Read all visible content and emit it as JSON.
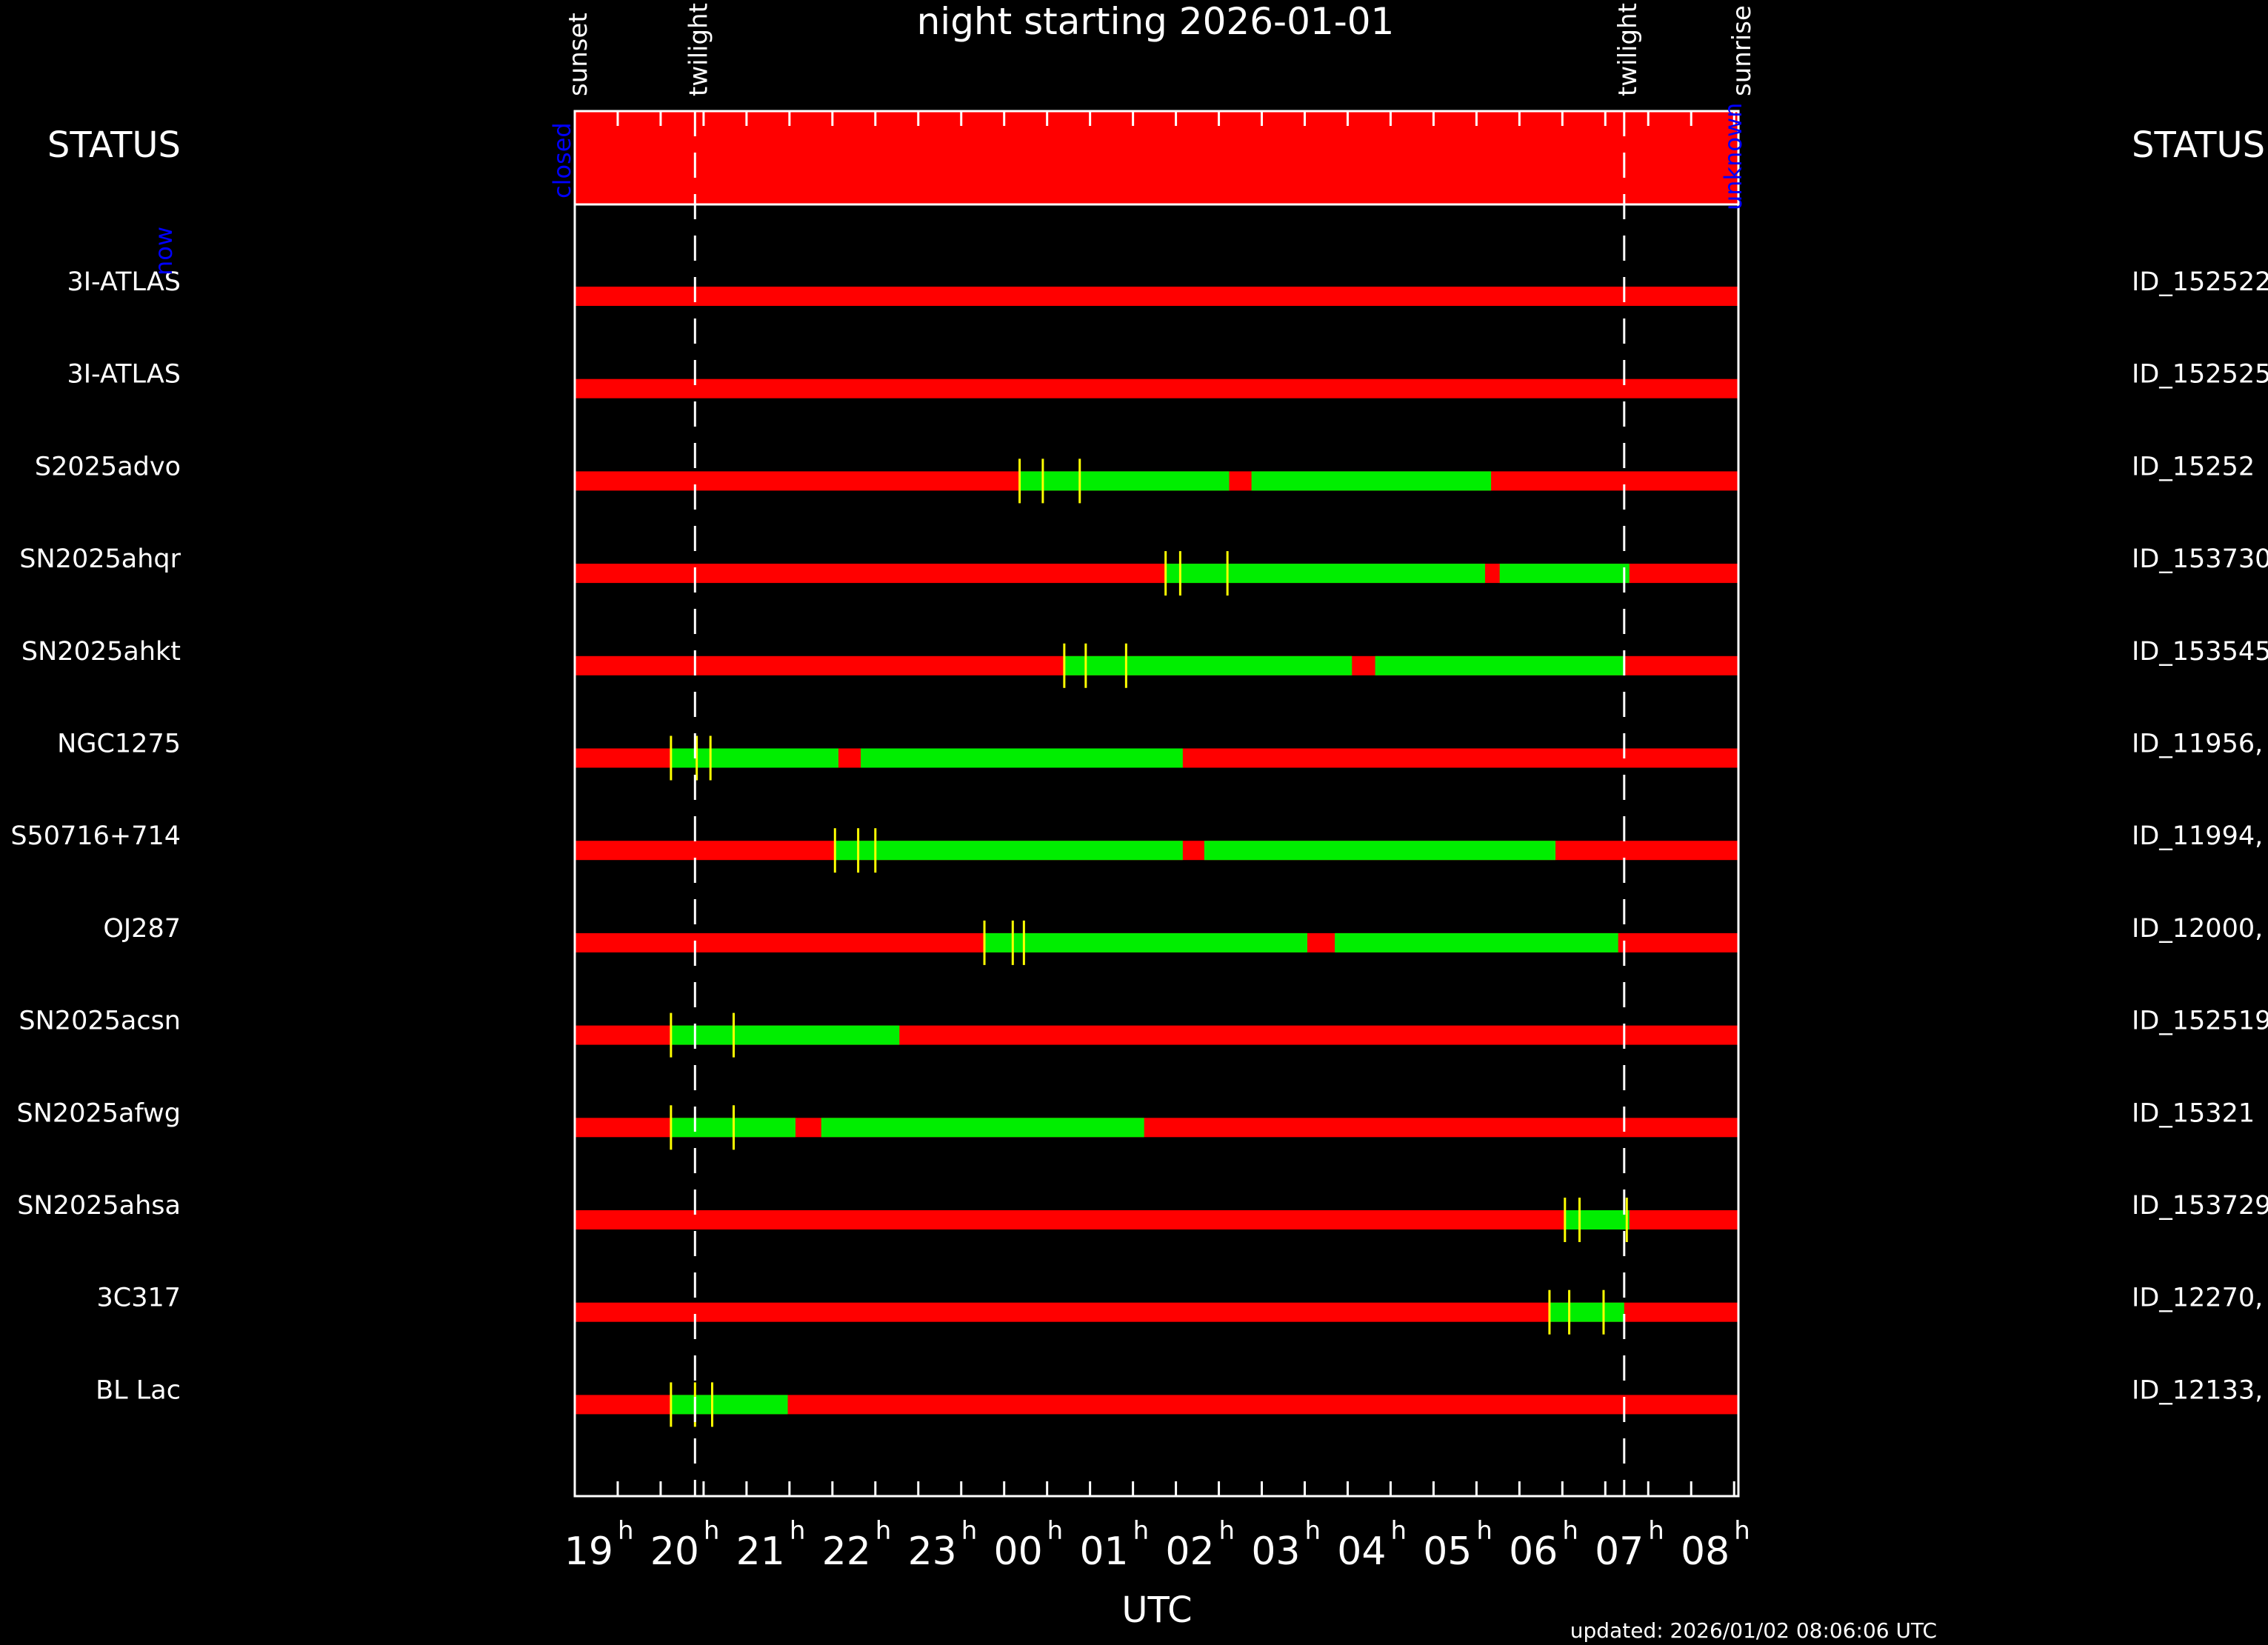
{
  "chart_data": {
    "type": "timeline",
    "title": "night starting 2026-01-01",
    "xlabel": "UTC",
    "x_ticks": [
      "19",
      "20",
      "21",
      "22",
      "23",
      "00",
      "01",
      "02",
      "03",
      "04",
      "05",
      "06",
      "07",
      "08"
    ],
    "x_tick_suffix": "h",
    "x_range_hours": [
      18.5,
      32.05
    ],
    "markers": [
      {
        "label": "sunset",
        "time": 18.5,
        "dashed": false
      },
      {
        "label": "twilight",
        "time": 19.9,
        "dashed": true
      },
      {
        "label": "twilight",
        "time": 30.72,
        "dashed": true
      },
      {
        "label": "sunrise",
        "time": 32.05,
        "dashed": false
      }
    ],
    "status": {
      "label": "STATUS",
      "right_label": "STATUS",
      "left_state": "closed",
      "right_state": "unknown",
      "now_label": "now",
      "bar_color": "#ff0000"
    },
    "colors": {
      "unobservable": "#ff0000",
      "observable": "#00ee00",
      "tick": "#ffff00",
      "text_blue": "#0000ff"
    },
    "targets": [
      {
        "name": "3I-ATLAS",
        "id": "ID_152522",
        "green": [],
        "ticks": []
      },
      {
        "name": "3I-ATLAS",
        "id": "ID_152525",
        "green": [],
        "ticks": []
      },
      {
        "name": "S2025advo",
        "id": "ID_15252",
        "green": [
          [
            23.68,
            26.12
          ],
          [
            26.38,
            29.17
          ]
        ],
        "ticks": [
          23.68,
          23.95,
          24.38
        ]
      },
      {
        "name": "SN2025ahqr",
        "id": "ID_153730",
        "green": [
          [
            25.38,
            29.1
          ],
          [
            29.27,
            30.78
          ]
        ],
        "ticks": [
          25.38,
          25.55,
          26.1
        ]
      },
      {
        "name": "SN2025ahkt",
        "id": "ID_153545",
        "green": [
          [
            24.2,
            27.55
          ],
          [
            27.82,
            30.72
          ]
        ],
        "ticks": [
          24.2,
          24.45,
          24.92
        ]
      },
      {
        "name": "NGC1275",
        "id": "ID_11956,",
        "green": [
          [
            19.62,
            21.57
          ],
          [
            21.83,
            25.58
          ]
        ],
        "ticks": [
          19.62,
          19.92,
          20.08
        ]
      },
      {
        "name": "S50716+714",
        "id": "ID_11994,",
        "green": [
          [
            21.53,
            25.58
          ],
          [
            25.83,
            29.92
          ]
        ],
        "ticks": [
          21.53,
          21.8,
          22.0
        ]
      },
      {
        "name": "OJ287",
        "id": "ID_12000,",
        "green": [
          [
            23.27,
            27.03
          ],
          [
            27.35,
            30.65
          ]
        ],
        "ticks": [
          23.27,
          23.6,
          23.73
        ]
      },
      {
        "name": "SN2025acsn",
        "id": "ID_152519",
        "green": [
          [
            19.62,
            22.28
          ]
        ],
        "ticks": [
          19.62,
          20.35
        ]
      },
      {
        "name": "SN2025afwg",
        "id": "ID_15321",
        "green": [
          [
            19.62,
            21.07
          ],
          [
            21.37,
            25.13
          ]
        ],
        "ticks": [
          19.62,
          20.35
        ]
      },
      {
        "name": "SN2025ahsa",
        "id": "ID_153729",
        "green": [
          [
            30.03,
            30.78
          ]
        ],
        "ticks": [
          30.03,
          30.2,
          30.75
        ]
      },
      {
        "name": "3C317",
        "id": "ID_12270,",
        "green": [
          [
            29.85,
            30.72
          ]
        ],
        "ticks": [
          29.85,
          30.08,
          30.48
        ]
      },
      {
        "name": "BL Lac",
        "id": "ID_12133,",
        "green": [
          [
            19.62,
            20.98
          ]
        ],
        "ticks": [
          19.62,
          19.9,
          20.1
        ]
      }
    ]
  },
  "footer": {
    "updated": "updated: 2026/01/02 08:06:06 UTC"
  }
}
